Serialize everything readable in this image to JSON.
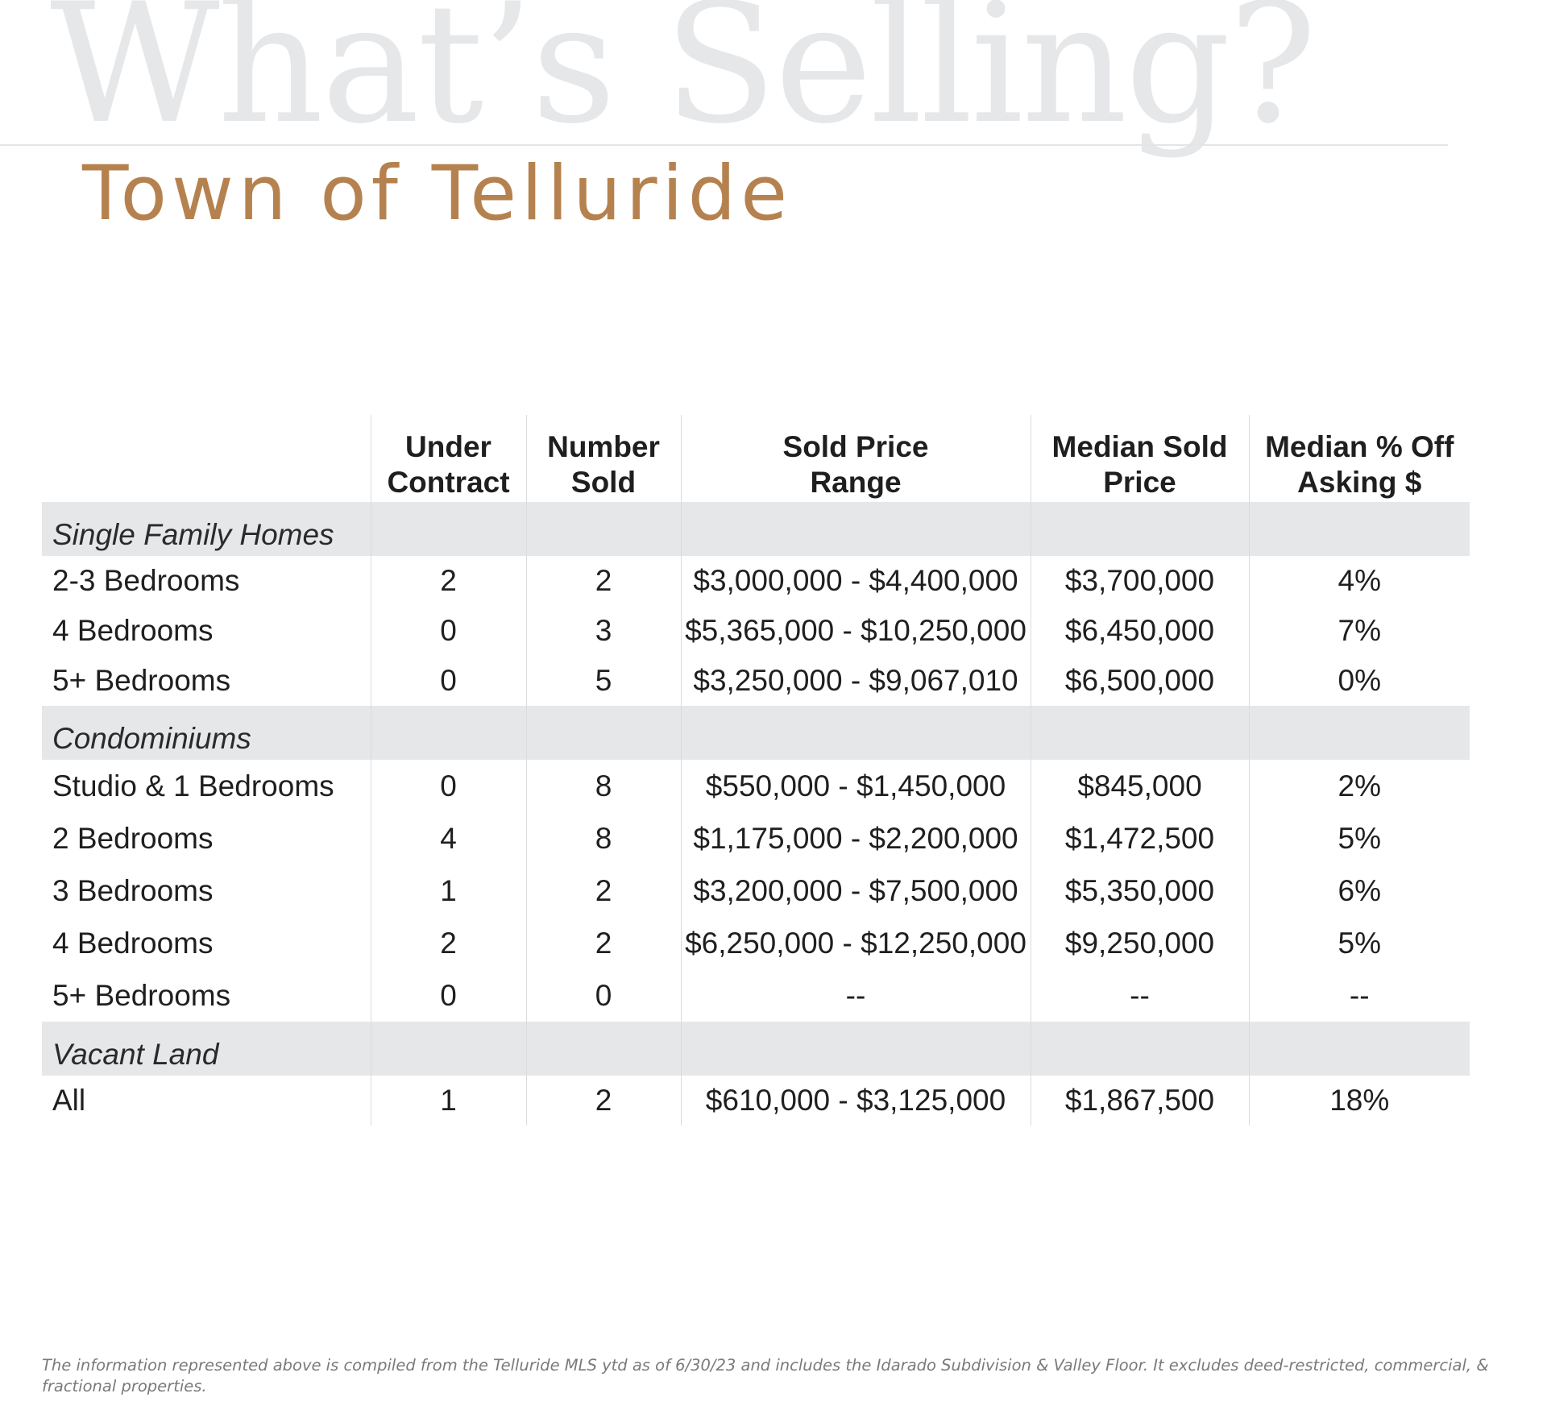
{
  "header": {
    "background_title": "What’s Selling?",
    "subtitle": "Town of Telluride"
  },
  "table": {
    "headers": {
      "under_contract": [
        "Under",
        "Contract"
      ],
      "number_sold": [
        "Number",
        "Sold"
      ],
      "sold_price_range": [
        "Sold Price",
        "Range"
      ],
      "median_sold_price": [
        "Median Sold",
        "Price"
      ],
      "median_off_asking": [
        "Median % Off",
        "Asking $"
      ]
    },
    "sections": [
      {
        "name": "Single Family Homes",
        "rows": [
          {
            "label": "2-3 Bedrooms",
            "under_contract": "2",
            "number_sold": "2",
            "range": "$3,000,000 - $4,400,000",
            "median": "$3,700,000",
            "off_asking": "4%"
          },
          {
            "label": "4 Bedrooms",
            "under_contract": "0",
            "number_sold": "3",
            "range": "$5,365,000 - $10,250,000",
            "median": "$6,450,000",
            "off_asking": "7%"
          },
          {
            "label": "5+ Bedrooms",
            "under_contract": "0",
            "number_sold": "5",
            "range": "$3,250,000 - $9,067,010",
            "median": "$6,500,000",
            "off_asking": "0%"
          }
        ]
      },
      {
        "name": "Condominiums",
        "rows": [
          {
            "label": "Studio & 1 Bedrooms",
            "under_contract": "0",
            "number_sold": "8",
            "range": "$550,000 - $1,450,000",
            "median": "$845,000",
            "off_asking": "2%"
          },
          {
            "label": "2 Bedrooms",
            "under_contract": "4",
            "number_sold": "8",
            "range": "$1,175,000 - $2,200,000",
            "median": "$1,472,500",
            "off_asking": "5%"
          },
          {
            "label": "3 Bedrooms",
            "under_contract": "1",
            "number_sold": "2",
            "range": "$3,200,000 - $7,500,000",
            "median": "$5,350,000",
            "off_asking": "6%"
          },
          {
            "label": "4 Bedrooms",
            "under_contract": "2",
            "number_sold": "2",
            "range": "$6,250,000 - $12,250,000",
            "median": "$9,250,000",
            "off_asking": "5%"
          },
          {
            "label": "5+ Bedrooms",
            "under_contract": "0",
            "number_sold": "0",
            "range": "--",
            "median": "--",
            "off_asking": "--"
          }
        ]
      },
      {
        "name": "Vacant Land",
        "rows": [
          {
            "label": "All",
            "under_contract": "1",
            "number_sold": "2",
            "range": "$610,000 - $3,125,000",
            "median": "$1,867,500",
            "off_asking": "18%"
          }
        ]
      }
    ]
  },
  "footnote": "The information represented above is compiled from the Telluride MLS ytd as of 6/30/23 and includes the Idarado Subdivision & Valley Floor. It excludes deed-restricted, commercial, & fractional properties.",
  "colors": {
    "accent": "#b5824f",
    "watermark": "#e6e7e9",
    "section_band": "#e6e7e9"
  }
}
